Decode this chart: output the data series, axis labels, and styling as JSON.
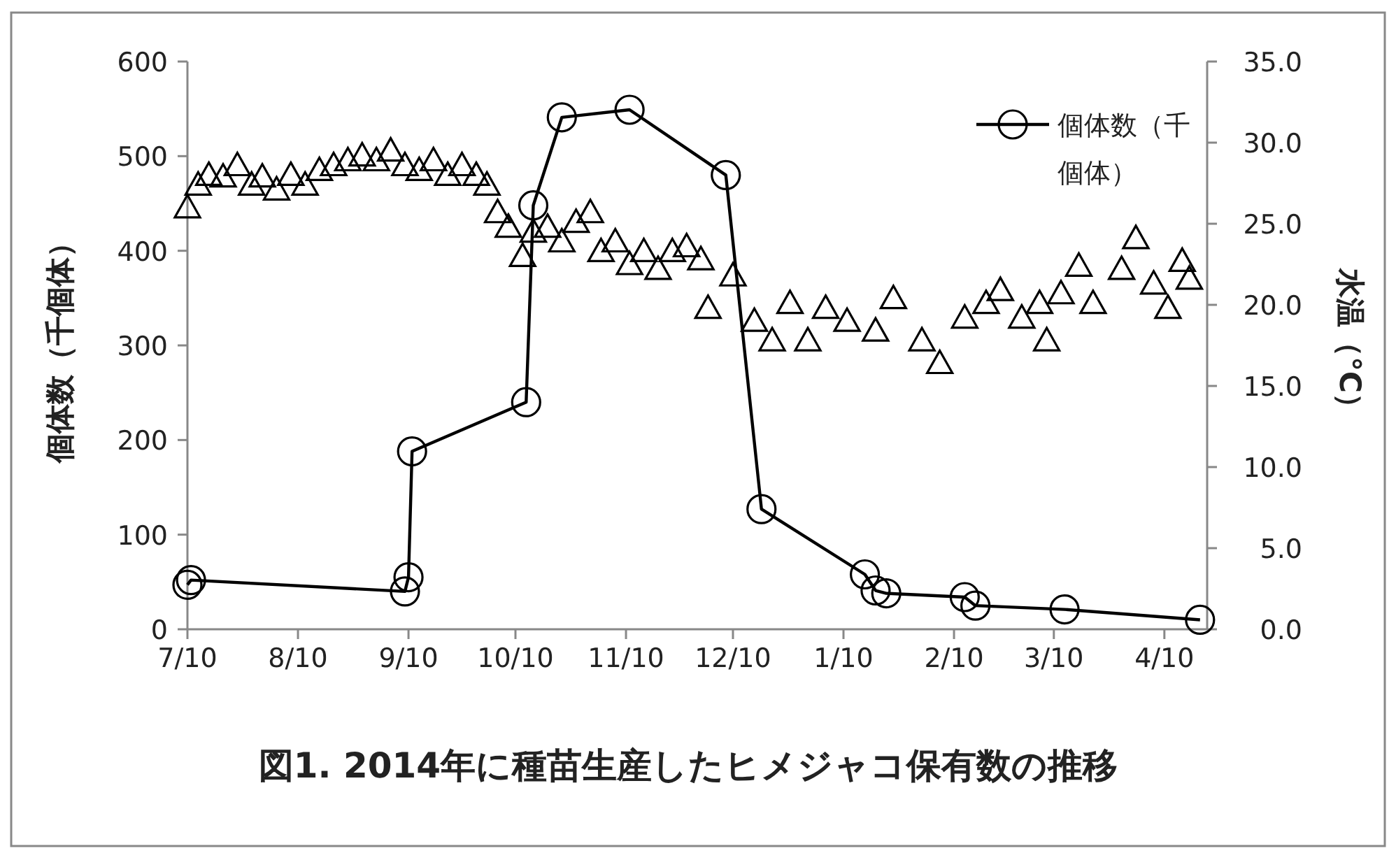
{
  "chart_data": {
    "type": "line",
    "title": "図1. 2014年に種苗生産したヒメジャコ保有数の推移",
    "ylabel": "個体数（千個体）",
    "y2label": "水温（°C）",
    "xlim": [
      "2014-07-10",
      "2015-04-22"
    ],
    "xticks": [
      {
        "value": "2014-07-10",
        "label": "7/10"
      },
      {
        "value": "2014-08-10",
        "label": "8/10"
      },
      {
        "value": "2014-09-10",
        "label": "9/10"
      },
      {
        "value": "2014-10-10",
        "label": "10/10"
      },
      {
        "value": "2014-11-10",
        "label": "11/10"
      },
      {
        "value": "2014-12-10",
        "label": "12/10"
      },
      {
        "value": "2015-01-10",
        "label": "1/10"
      },
      {
        "value": "2015-02-10",
        "label": "2/10"
      },
      {
        "value": "2015-03-10",
        "label": "3/10"
      },
      {
        "value": "2015-04-10",
        "label": "4/10"
      }
    ],
    "ylim": [
      0,
      600
    ],
    "yticks": [
      0,
      100,
      200,
      300,
      400,
      500,
      600
    ],
    "y2lim": [
      0,
      35
    ],
    "y2ticks": [
      {
        "value": 0,
        "label": "0.0"
      },
      {
        "value": 5,
        "label": "5.0"
      },
      {
        "value": 10,
        "label": "10.0"
      },
      {
        "value": 15,
        "label": "15.0"
      },
      {
        "value": 20,
        "label": "20.0"
      },
      {
        "value": 25,
        "label": "25.0"
      },
      {
        "value": 30,
        "label": "30.0"
      },
      {
        "value": 35,
        "label": "35.0"
      }
    ],
    "grid": false,
    "legend": "top right",
    "series": [
      {
        "name": "個体数（千個体）",
        "marker": "circle",
        "color": "#000000",
        "x": [
          "2014-07-10",
          "2014-07-11",
          "2014-09-09",
          "2014-09-10",
          "2014-09-11",
          "2014-10-13",
          "2014-10-15",
          "2014-10-23",
          "2014-11-11",
          "2014-12-08",
          "2014-12-18",
          "2015-01-16",
          "2015-01-19",
          "2015-01-22",
          "2015-02-13",
          "2015-02-16",
          "2015-03-13",
          "2015-04-20"
        ],
        "values": [
          47,
          52,
          40,
          55,
          188,
          240,
          448,
          541,
          549,
          480,
          127,
          58,
          41,
          38,
          34,
          25,
          21,
          10
        ]
      },
      {
        "type": "scatter",
        "marker": "triangle",
        "color": "#000000",
        "axis": "y2",
        "x": [
          "2014-07-10",
          "2014-07-13",
          "2014-07-16",
          "2014-07-20",
          "2014-07-24",
          "2014-07-28",
          "2014-07-31",
          "2014-08-04",
          "2014-08-08",
          "2014-08-12",
          "2014-08-16",
          "2014-08-20",
          "2014-08-24",
          "2014-08-28",
          "2014-09-01",
          "2014-09-05",
          "2014-09-09",
          "2014-09-13",
          "2014-09-17",
          "2014-09-21",
          "2014-09-25",
          "2014-09-29",
          "2014-10-02",
          "2014-10-05",
          "2014-10-08",
          "2014-10-12",
          "2014-10-15",
          "2014-10-19",
          "2014-10-23",
          "2014-10-27",
          "2014-10-31",
          "2014-11-03",
          "2014-11-07",
          "2014-11-11",
          "2014-11-15",
          "2014-11-19",
          "2014-11-23",
          "2014-11-27",
          "2014-12-01",
          "2014-12-03",
          "2014-12-10",
          "2014-12-16",
          "2014-12-21",
          "2014-12-26",
          "2014-12-31",
          "2015-01-05",
          "2015-01-11",
          "2015-01-19",
          "2015-01-24",
          "2015-02-01",
          "2015-02-06",
          "2015-02-13",
          "2015-02-19",
          "2015-02-23",
          "2015-03-01",
          "2015-03-06",
          "2015-03-08",
          "2015-03-12",
          "2015-03-17",
          "2015-03-21",
          "2015-03-29",
          "2015-04-02",
          "2015-04-07",
          "2015-04-11",
          "2015-04-15",
          "2015-04-17"
        ],
        "values": [
          26.0,
          27.4,
          28.0,
          27.9,
          28.6,
          27.4,
          27.9,
          27.1,
          28.0,
          27.4,
          28.3,
          28.6,
          28.9,
          29.2,
          28.9,
          29.5,
          28.6,
          28.3,
          28.9,
          28.0,
          28.6,
          28.0,
          27.4,
          25.7,
          24.8,
          23.0,
          24.5,
          24.8,
          23.9,
          25.1,
          25.7,
          23.3,
          23.9,
          22.5,
          23.3,
          22.2,
          23.3,
          23.6,
          22.8,
          19.8,
          21.8,
          19.0,
          17.8,
          20.1,
          17.8,
          19.8,
          19.0,
          18.4,
          20.4,
          17.8,
          16.4,
          19.2,
          20.1,
          20.9,
          19.2,
          20.1,
          17.8,
          20.7,
          22.4,
          20.1,
          22.2,
          24.1,
          21.3,
          19.8,
          22.7,
          21.6
        ]
      }
    ]
  }
}
